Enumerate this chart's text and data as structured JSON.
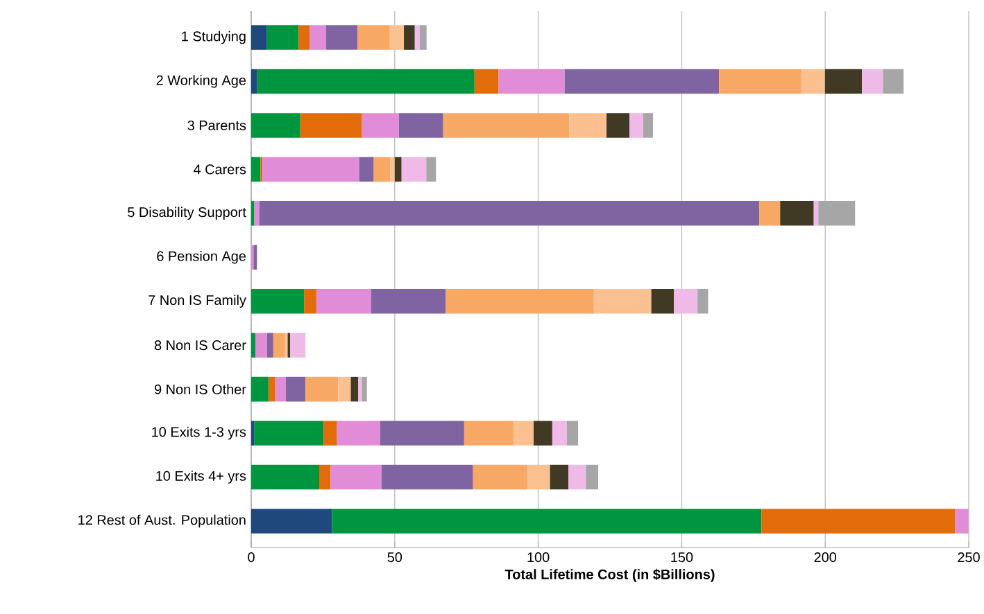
{
  "chart_data": {
    "type": "bar",
    "orientation": "horizontal",
    "stacked": true,
    "xlabel": "Total Lifetime Cost (in $Billions)",
    "categories": [
      "1 Studying",
      "2 Working Age",
      "3 Parents",
      "4 Carers",
      "5 Disability Support",
      "6 Pension Age",
      "7 Non IS Family",
      "8 Non IS Carer",
      "9 Non IS Other",
      "10 Exits 1-3 yrs",
      "10 Exits 4+ yrs",
      "12 Rest of Aust. Population"
    ],
    "xlim": [
      0,
      250
    ],
    "xticks": [
      0,
      50,
      100,
      150,
      200,
      250
    ],
    "grid": "x",
    "series": [
      {
        "color": "#1f497d",
        "values": [
          5.5,
          2.1,
          null,
          null,
          null,
          null,
          null,
          null,
          null,
          1.0,
          null,
          28.1
        ]
      },
      {
        "color": "#00953f",
        "values": [
          11.0,
          75.7,
          17.1,
          3.2,
          1.1,
          null,
          18.4,
          1.5,
          6.0,
          24.2,
          23.7,
          149.7
        ]
      },
      {
        "color": "#e36c0a",
        "values": [
          3.8,
          8.4,
          21.5,
          0.7,
          null,
          null,
          4.3,
          null,
          2.4,
          4.7,
          3.9,
          67.5
        ]
      },
      {
        "color": "#e08cd6",
        "values": [
          5.8,
          23.0,
          12.9,
          33.7,
          1.7,
          0.8,
          19.1,
          4.0,
          3.7,
          15.0,
          17.8,
          4.6
        ]
      },
      {
        "color": "#8064a2",
        "values": [
          11.0,
          53.8,
          15.4,
          5.1,
          174.2,
          1.2,
          26.0,
          2.2,
          6.8,
          29.3,
          31.9,
          null
        ]
      },
      {
        "color": "#f8a865",
        "values": [
          11.2,
          28.7,
          43.9,
          5.7,
          7.3,
          null,
          51.6,
          4.1,
          11.4,
          17.3,
          19.0,
          null
        ]
      },
      {
        "color": "#fac090",
        "values": [
          4.9,
          8.2,
          13.0,
          1.6,
          null,
          null,
          20.0,
          0.9,
          4.4,
          6.9,
          7.8,
          null
        ]
      },
      {
        "color": "#403a24",
        "values": [
          3.8,
          12.9,
          8.0,
          2.4,
          11.7,
          null,
          7.9,
          0.9,
          2.6,
          6.5,
          6.4,
          null
        ]
      },
      {
        "color": "#efbae8",
        "values": [
          1.7,
          7.3,
          4.8,
          8.6,
          1.6,
          null,
          8.2,
          5.3,
          1.3,
          5.1,
          6.1,
          null
        ]
      },
      {
        "color": "#a6a6a6",
        "values": [
          2.4,
          7.2,
          3.4,
          3.4,
          12.8,
          null,
          3.7,
          null,
          1.7,
          3.9,
          4.3,
          null
        ]
      }
    ]
  }
}
